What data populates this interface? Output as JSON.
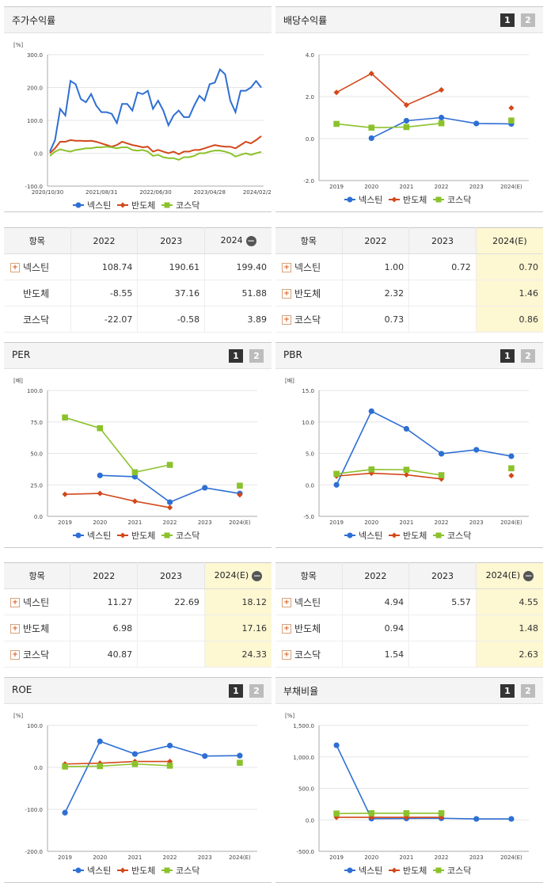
{
  "panels": [
    {
      "id": "stock",
      "title": "주가수익률",
      "tabs": false,
      "x": 5,
      "y": 8
    },
    {
      "id": "div",
      "title": "배당수익률",
      "tabs": true,
      "x": 348,
      "y": 8
    },
    {
      "id": "per",
      "title": "PER",
      "tabs": true,
      "x": 5,
      "y": 432
    },
    {
      "id": "pbr",
      "title": "PBR",
      "tabs": true,
      "x": 348,
      "y": 432
    },
    {
      "id": "roe",
      "title": "ROE",
      "tabs": true,
      "x": 5,
      "y": 855
    },
    {
      "id": "debt",
      "title": "부채비율",
      "tabs": true,
      "x": 348,
      "y": 855
    }
  ],
  "tab_labels": [
    "1",
    "2"
  ],
  "legend": {
    "a": "넥스틴",
    "b": "반도체",
    "c": "코스닥"
  },
  "colors": {
    "a": "#2e6fd4",
    "b": "#d2481b",
    "c": "#8bc22c"
  },
  "chart_data": [
    {
      "id": "stock",
      "type": "line",
      "unit": "[%]",
      "ylim": [
        -100,
        300
      ],
      "yticks": [
        "300.0",
        "200.0",
        "100.0",
        "0.0",
        "-100.0"
      ],
      "xticks": [
        "2020/10/30",
        "2021/08/31",
        "2022/06/30",
        "2023/04/28",
        "2024/02/29"
      ],
      "series": [
        {
          "name": "넥스틴",
          "values": [
            5,
            40,
            135,
            115,
            220,
            210,
            165,
            155,
            180,
            145,
            125,
            125,
            120,
            92,
            150,
            150,
            130,
            185,
            180,
            190,
            135,
            160,
            130,
            85,
            115,
            130,
            110,
            110,
            145,
            175,
            160,
            210,
            215,
            255,
            240,
            160,
            125,
            190,
            190,
            200,
            220,
            200
          ]
        },
        {
          "name": "반도체",
          "values": [
            0,
            15,
            35,
            35,
            40,
            38,
            38,
            37,
            38,
            35,
            30,
            25,
            20,
            25,
            35,
            30,
            25,
            22,
            18,
            20,
            5,
            10,
            5,
            0,
            5,
            -3,
            5,
            5,
            10,
            10,
            15,
            20,
            25,
            22,
            20,
            20,
            15,
            25,
            35,
            30,
            40,
            52
          ]
        },
        {
          "name": "코스닥",
          "values": [
            -8,
            5,
            12,
            8,
            5,
            10,
            12,
            15,
            15,
            18,
            18,
            20,
            18,
            15,
            18,
            18,
            10,
            8,
            10,
            5,
            -8,
            -5,
            -12,
            -15,
            -15,
            -20,
            -12,
            -12,
            -8,
            0,
            0,
            5,
            8,
            8,
            5,
            0,
            -10,
            -5,
            0,
            -5,
            0,
            4
          ]
        }
      ]
    },
    {
      "id": "div",
      "type": "line",
      "unit": "",
      "ylim": [
        -2,
        4
      ],
      "yticks": [
        "4.0",
        "2.0",
        "0.0",
        "-2.0"
      ],
      "xticks": [
        "2019",
        "2020",
        "2021",
        "2022",
        "2023",
        "2024(E)"
      ],
      "series": [
        {
          "name": "넥스틴",
          "values": [
            null,
            0.02,
            0.85,
            1.0,
            0.72,
            0.7
          ]
        },
        {
          "name": "반도체",
          "values": [
            2.2,
            3.1,
            1.6,
            2.32,
            null,
            1.46
          ]
        },
        {
          "name": "코스닥",
          "values": [
            0.7,
            0.52,
            0.55,
            0.73,
            null,
            0.86
          ]
        }
      ]
    },
    {
      "id": "per",
      "type": "line",
      "unit": "[배]",
      "ylim": [
        0,
        100
      ],
      "yticks": [
        "100.0",
        "75.0",
        "50.0",
        "25.0",
        "0.0"
      ],
      "xticks": [
        "2019",
        "2020",
        "2021",
        "2022",
        "2023",
        "2024(E)"
      ],
      "series": [
        {
          "name": "넥스틴",
          "values": [
            null,
            32.5,
            31.5,
            11.27,
            22.69,
            18.12
          ]
        },
        {
          "name": "반도체",
          "values": [
            17.5,
            18.2,
            12.0,
            6.98,
            null,
            17.16
          ]
        },
        {
          "name": "코스닥",
          "values": [
            78.5,
            70.0,
            35.0,
            40.87,
            null,
            24.33
          ]
        }
      ]
    },
    {
      "id": "pbr",
      "type": "line",
      "unit": "[배]",
      "ylim": [
        -5,
        15
      ],
      "yticks": [
        "15.0",
        "10.0",
        "5.0",
        "0.0",
        "-5.0"
      ],
      "xticks": [
        "2019",
        "2020",
        "2021",
        "2022",
        "2023",
        "2024(E)"
      ],
      "series": [
        {
          "name": "넥스틴",
          "values": [
            0.0,
            11.7,
            8.9,
            4.94,
            5.57,
            4.55
          ]
        },
        {
          "name": "반도체",
          "values": [
            1.4,
            1.85,
            1.6,
            0.94,
            null,
            1.48
          ]
        },
        {
          "name": "코스닥",
          "values": [
            1.75,
            2.45,
            2.4,
            1.54,
            null,
            2.63
          ]
        }
      ]
    },
    {
      "id": "roe",
      "type": "line",
      "unit": "[%]",
      "ylim": [
        -200,
        100
      ],
      "yticks": [
        "100.0",
        "0.0",
        "-100.0",
        "-200.0"
      ],
      "xticks": [
        "2019",
        "2020",
        "2021",
        "2022",
        "2023",
        "2024(E)"
      ],
      "series": [
        {
          "name": "넥스틴",
          "values": [
            -108,
            62,
            32,
            52,
            27,
            28
          ]
        },
        {
          "name": "반도체",
          "values": [
            8,
            10,
            14,
            14,
            null,
            10
          ]
        },
        {
          "name": "코스닥",
          "values": [
            2,
            3,
            8,
            4,
            null,
            11
          ]
        }
      ]
    },
    {
      "id": "debt",
      "type": "line",
      "unit": "[%]",
      "ylim": [
        -500,
        1500
      ],
      "yticks": [
        "1,500.0",
        "1,000.0",
        "500.0",
        "0.0",
        "-500.0"
      ],
      "xticks": [
        "2019",
        "2020",
        "2021",
        "2022",
        "2023",
        "2024(E)"
      ],
      "series": [
        {
          "name": "넥스틴",
          "values": [
            1185,
            20,
            22,
            25,
            15,
            15
          ]
        },
        {
          "name": "반도체",
          "values": [
            40,
            40,
            40,
            40,
            null,
            null
          ]
        },
        {
          "name": "코스닥",
          "values": [
            100,
            105,
            105,
            105,
            null,
            null
          ]
        }
      ]
    }
  ],
  "tables": [
    {
      "id": "t_stock",
      "x": 5,
      "y": 287,
      "header": [
        "항목",
        "2022",
        "2023",
        "2024"
      ],
      "hl": false,
      "minus": true,
      "rows": [
        {
          "name": "넥스틴",
          "plus": true,
          "v": [
            "108.74",
            "190.61",
            "199.40"
          ]
        },
        {
          "name": "반도체",
          "plus": false,
          "v": [
            "-8.55",
            "37.16",
            "51.88"
          ]
        },
        {
          "name": "코스닥",
          "plus": false,
          "v": [
            "-22.07",
            "-0.58",
            "3.89"
          ]
        }
      ]
    },
    {
      "id": "t_div",
      "x": 348,
      "y": 287,
      "header": [
        "항목",
        "2022",
        "2023",
        "2024(E)"
      ],
      "hl": true,
      "minus": false,
      "rows": [
        {
          "name": "넥스틴",
          "plus": true,
          "v": [
            "1.00",
            "0.72",
            "0.70"
          ]
        },
        {
          "name": "반도체",
          "plus": true,
          "v": [
            "2.32",
            "",
            "1.46"
          ]
        },
        {
          "name": "코스닥",
          "plus": true,
          "v": [
            "0.73",
            "",
            "0.86"
          ]
        }
      ]
    },
    {
      "id": "t_per",
      "x": 5,
      "y": 710,
      "header": [
        "항목",
        "2022",
        "2023",
        "2024(E)"
      ],
      "hl": true,
      "minus": true,
      "rows": [
        {
          "name": "넥스틴",
          "plus": true,
          "v": [
            "11.27",
            "22.69",
            "18.12"
          ]
        },
        {
          "name": "반도체",
          "plus": true,
          "v": [
            "6.98",
            "",
            "17.16"
          ]
        },
        {
          "name": "코스닥",
          "plus": true,
          "v": [
            "40.87",
            "",
            "24.33"
          ]
        }
      ]
    },
    {
      "id": "t_pbr",
      "x": 348,
      "y": 710,
      "header": [
        "항목",
        "2022",
        "2023",
        "2024(E)"
      ],
      "hl": true,
      "minus": true,
      "rows": [
        {
          "name": "넥스틴",
          "plus": true,
          "v": [
            "4.94",
            "5.57",
            "4.55"
          ]
        },
        {
          "name": "반도체",
          "plus": true,
          "v": [
            "0.94",
            "",
            "1.48"
          ]
        },
        {
          "name": "코스닥",
          "plus": true,
          "v": [
            "1.54",
            "",
            "2.63"
          ]
        }
      ]
    }
  ]
}
